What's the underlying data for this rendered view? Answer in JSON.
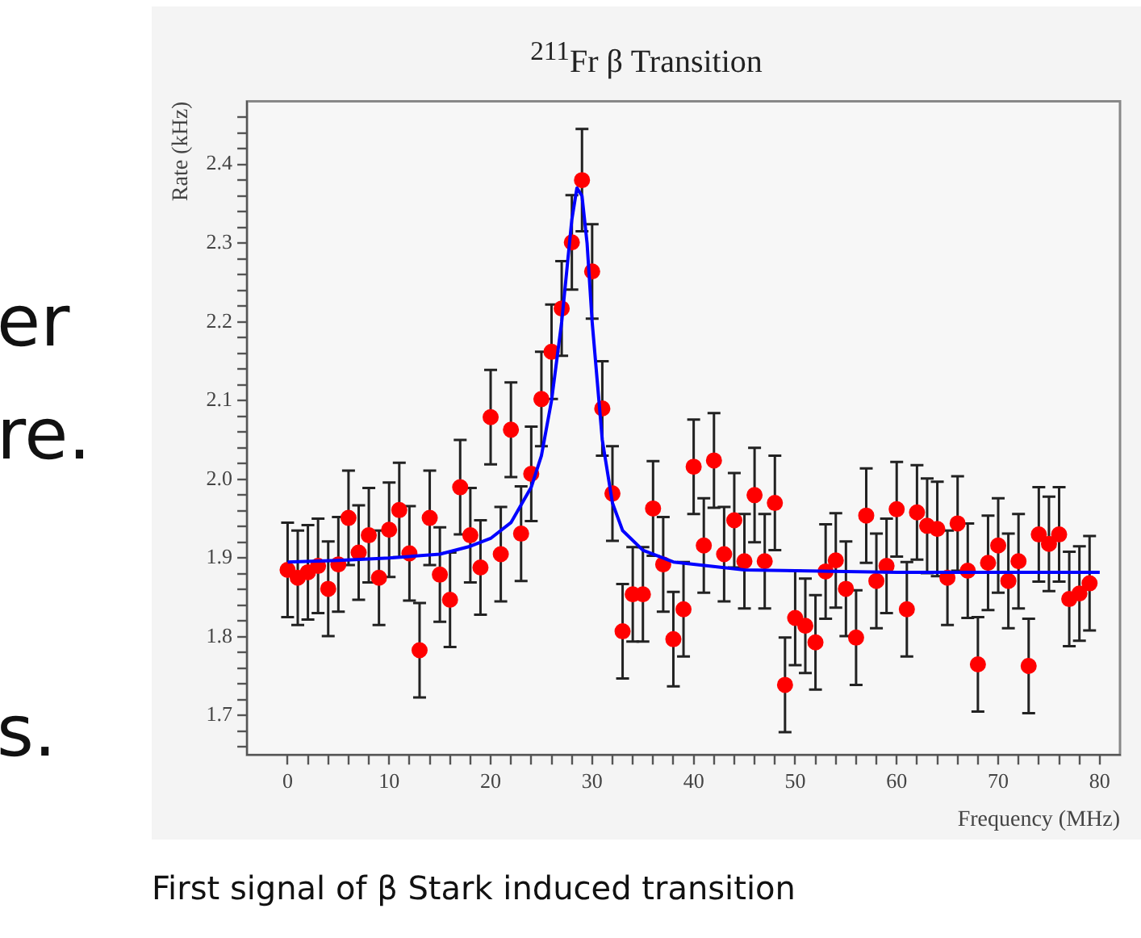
{
  "chart_data": {
    "type": "scatter",
    "title": "$^{211}$Fr β Transition",
    "xlabel": "Frequency (MHz)",
    "ylabel": "Rate (kHz)",
    "annotations": [
      "er",
      "re.",
      "s.",
      "First signal of β Stark induced transition"
    ],
    "xlim": [
      -4,
      82
    ],
    "ylim": [
      1.65,
      2.48
    ],
    "xticks": [
      0,
      {
        "value": 2,
        "label": null
      },
      {
        "value": 4,
        "label": null
      },
      {
        "value": 6,
        "label": null
      },
      {
        "value": 8,
        "label": null
      },
      10,
      {
        "value": 12,
        "label": null
      },
      {
        "value": 14,
        "label": null
      },
      {
        "value": 16,
        "label": null
      },
      {
        "value": 18,
        "label": null
      },
      20,
      {
        "value": 22,
        "label": null
      },
      {
        "value": 24,
        "label": null
      },
      {
        "value": 26,
        "label": null
      },
      {
        "value": 28,
        "label": null
      },
      30,
      {
        "value": 32,
        "label": null
      },
      {
        "value": 34,
        "label": null
      },
      {
        "value": 36,
        "label": null
      },
      {
        "value": 38,
        "label": null
      },
      40,
      {
        "value": 42,
        "label": null
      },
      {
        "value": 44,
        "label": null
      },
      {
        "value": 46,
        "label": null
      },
      {
        "value": 48,
        "label": null
      },
      50,
      {
        "value": 52,
        "label": null
      },
      {
        "value": 54,
        "label": null
      },
      {
        "value": 56,
        "label": null
      },
      {
        "value": 58,
        "label": null
      },
      60,
      {
        "value": 62,
        "label": null
      },
      {
        "value": 64,
        "label": null
      },
      {
        "value": 66,
        "label": null
      },
      {
        "value": 68,
        "label": null
      },
      70,
      {
        "value": 72,
        "label": null
      },
      {
        "value": 74,
        "label": null
      },
      {
        "value": 76,
        "label": null
      },
      {
        "value": 78,
        "label": null
      },
      80
    ],
    "yticks": [
      {
        "value": 1.66,
        "label": null
      },
      {
        "value": 1.68,
        "label": null
      },
      {
        "value": 1.7,
        "label": "1.7"
      },
      {
        "value": 1.72,
        "label": null
      },
      {
        "value": 1.74,
        "label": null
      },
      {
        "value": 1.76,
        "label": null
      },
      {
        "value": 1.78,
        "label": null
      },
      {
        "value": 1.8,
        "label": "1.8"
      },
      {
        "value": 1.82,
        "label": null
      },
      {
        "value": 1.84,
        "label": null
      },
      {
        "value": 1.86,
        "label": null
      },
      {
        "value": 1.88,
        "label": null
      },
      {
        "value": 1.9,
        "label": "1.9"
      },
      {
        "value": 1.92,
        "label": null
      },
      {
        "value": 1.94,
        "label": null
      },
      {
        "value": 1.96,
        "label": null
      },
      {
        "value": 1.98,
        "label": null
      },
      {
        "value": 2.0,
        "label": "2.0"
      },
      {
        "value": 2.02,
        "label": null
      },
      {
        "value": 2.04,
        "label": null
      },
      {
        "value": 2.06,
        "label": null
      },
      {
        "value": 2.08,
        "label": null
      },
      {
        "value": 2.1,
        "label": "2.1"
      },
      {
        "value": 2.12,
        "label": null
      },
      {
        "value": 2.14,
        "label": null
      },
      {
        "value": 2.16,
        "label": null
      },
      {
        "value": 2.18,
        "label": null
      },
      {
        "value": 2.2,
        "label": "2.2"
      },
      {
        "value": 2.22,
        "label": null
      },
      {
        "value": 2.24,
        "label": null
      },
      {
        "value": 2.26,
        "label": null
      },
      {
        "value": 2.28,
        "label": null
      },
      {
        "value": 2.3,
        "label": "2.3"
      },
      {
        "value": 2.32,
        "label": null
      },
      {
        "value": 2.34,
        "label": null
      },
      {
        "value": 2.36,
        "label": null
      },
      {
        "value": 2.38,
        "label": null
      },
      {
        "value": 2.4,
        "label": "2.4"
      },
      {
        "value": 2.42,
        "label": null
      },
      {
        "value": 2.44,
        "label": null
      },
      {
        "value": 2.46,
        "label": null
      }
    ],
    "grid": false,
    "legend": false,
    "series": [
      {
        "type": "scatter",
        "color": "#ff0000",
        "marker": "circle",
        "x": [
          0,
          1,
          2,
          3,
          4,
          5,
          6,
          7,
          8,
          9,
          10,
          11,
          12,
          13,
          14,
          15,
          16,
          17,
          18,
          19,
          20,
          21,
          22,
          23,
          24,
          25,
          26,
          27,
          28,
          29,
          30,
          31,
          32,
          33,
          34,
          35,
          36,
          37,
          38,
          39,
          40,
          41,
          42,
          43,
          44,
          45,
          46,
          47,
          48,
          49,
          50,
          51,
          52,
          53,
          54,
          55,
          56,
          57,
          58,
          59,
          60,
          61,
          62,
          63,
          64,
          65,
          66,
          67,
          68,
          69,
          70,
          71,
          72,
          73,
          74,
          75,
          76,
          77,
          78,
          79
        ],
        "values": [
          1.885,
          1.875,
          1.882,
          1.89,
          1.861,
          1.892,
          1.951,
          1.907,
          1.929,
          1.875,
          1.936,
          1.961,
          1.906,
          1.783,
          1.951,
          1.879,
          1.847,
          1.99,
          1.929,
          1.888,
          2.079,
          1.905,
          2.063,
          1.931,
          2.007,
          2.102,
          2.162,
          2.217,
          2.301,
          2.38,
          2.264,
          2.09,
          1.982,
          1.807,
          1.854,
          1.854,
          1.963,
          1.892,
          1.797,
          1.835,
          2.016,
          1.916,
          2.024,
          1.905,
          1.948,
          1.896,
          1.98,
          1.896,
          1.97,
          1.739,
          1.824,
          1.814,
          1.793,
          1.883,
          1.897,
          1.861,
          1.799,
          1.954,
          1.871,
          1.89,
          1.962,
          1.835,
          1.958,
          1.941,
          1.937,
          1.875,
          1.944,
          1.884,
          1.765,
          1.894,
          1.916,
          1.871,
          1.896,
          1.763,
          1.93,
          1.918,
          1.93,
          1.848,
          1.855,
          1.868
        ],
        "errors": [
          0.06,
          0.06,
          0.06,
          0.06,
          0.06,
          0.06,
          0.06,
          0.06,
          0.06,
          0.06,
          0.06,
          0.06,
          0.06,
          0.06,
          0.06,
          0.06,
          0.06,
          0.06,
          0.06,
          0.06,
          0.06,
          0.06,
          0.06,
          0.06,
          0.06,
          0.06,
          0.06,
          0.06,
          0.06,
          0.065,
          0.06,
          0.06,
          0.06,
          0.06,
          0.06,
          0.06,
          0.06,
          0.06,
          0.06,
          0.06,
          0.06,
          0.06,
          0.06,
          0.06,
          0.06,
          0.06,
          0.06,
          0.06,
          0.06,
          0.06,
          0.06,
          0.06,
          0.06,
          0.06,
          0.06,
          0.06,
          0.06,
          0.06,
          0.06,
          0.06,
          0.06,
          0.06,
          0.06,
          0.06,
          0.06,
          0.06,
          0.06,
          0.06,
          0.06,
          0.06,
          0.06,
          0.06,
          0.06,
          0.06,
          0.06,
          0.06,
          0.06,
          0.06,
          0.06,
          0.06
        ]
      },
      {
        "type": "line",
        "color": "#0000ff",
        "marker": "none",
        "x": [
          0,
          5,
          10,
          15,
          18,
          20,
          22,
          24,
          25,
          26,
          27,
          28,
          28.5,
          29,
          29.5,
          30,
          31,
          32,
          33,
          35,
          38,
          45,
          60,
          80
        ],
        "values": [
          1.895,
          1.897,
          1.9,
          1.905,
          1.915,
          1.925,
          1.945,
          1.99,
          2.03,
          2.1,
          2.2,
          2.33,
          2.37,
          2.36,
          2.3,
          2.2,
          2.05,
          1.97,
          1.935,
          1.91,
          1.895,
          1.885,
          1.882,
          1.882
        ]
      }
    ]
  }
}
